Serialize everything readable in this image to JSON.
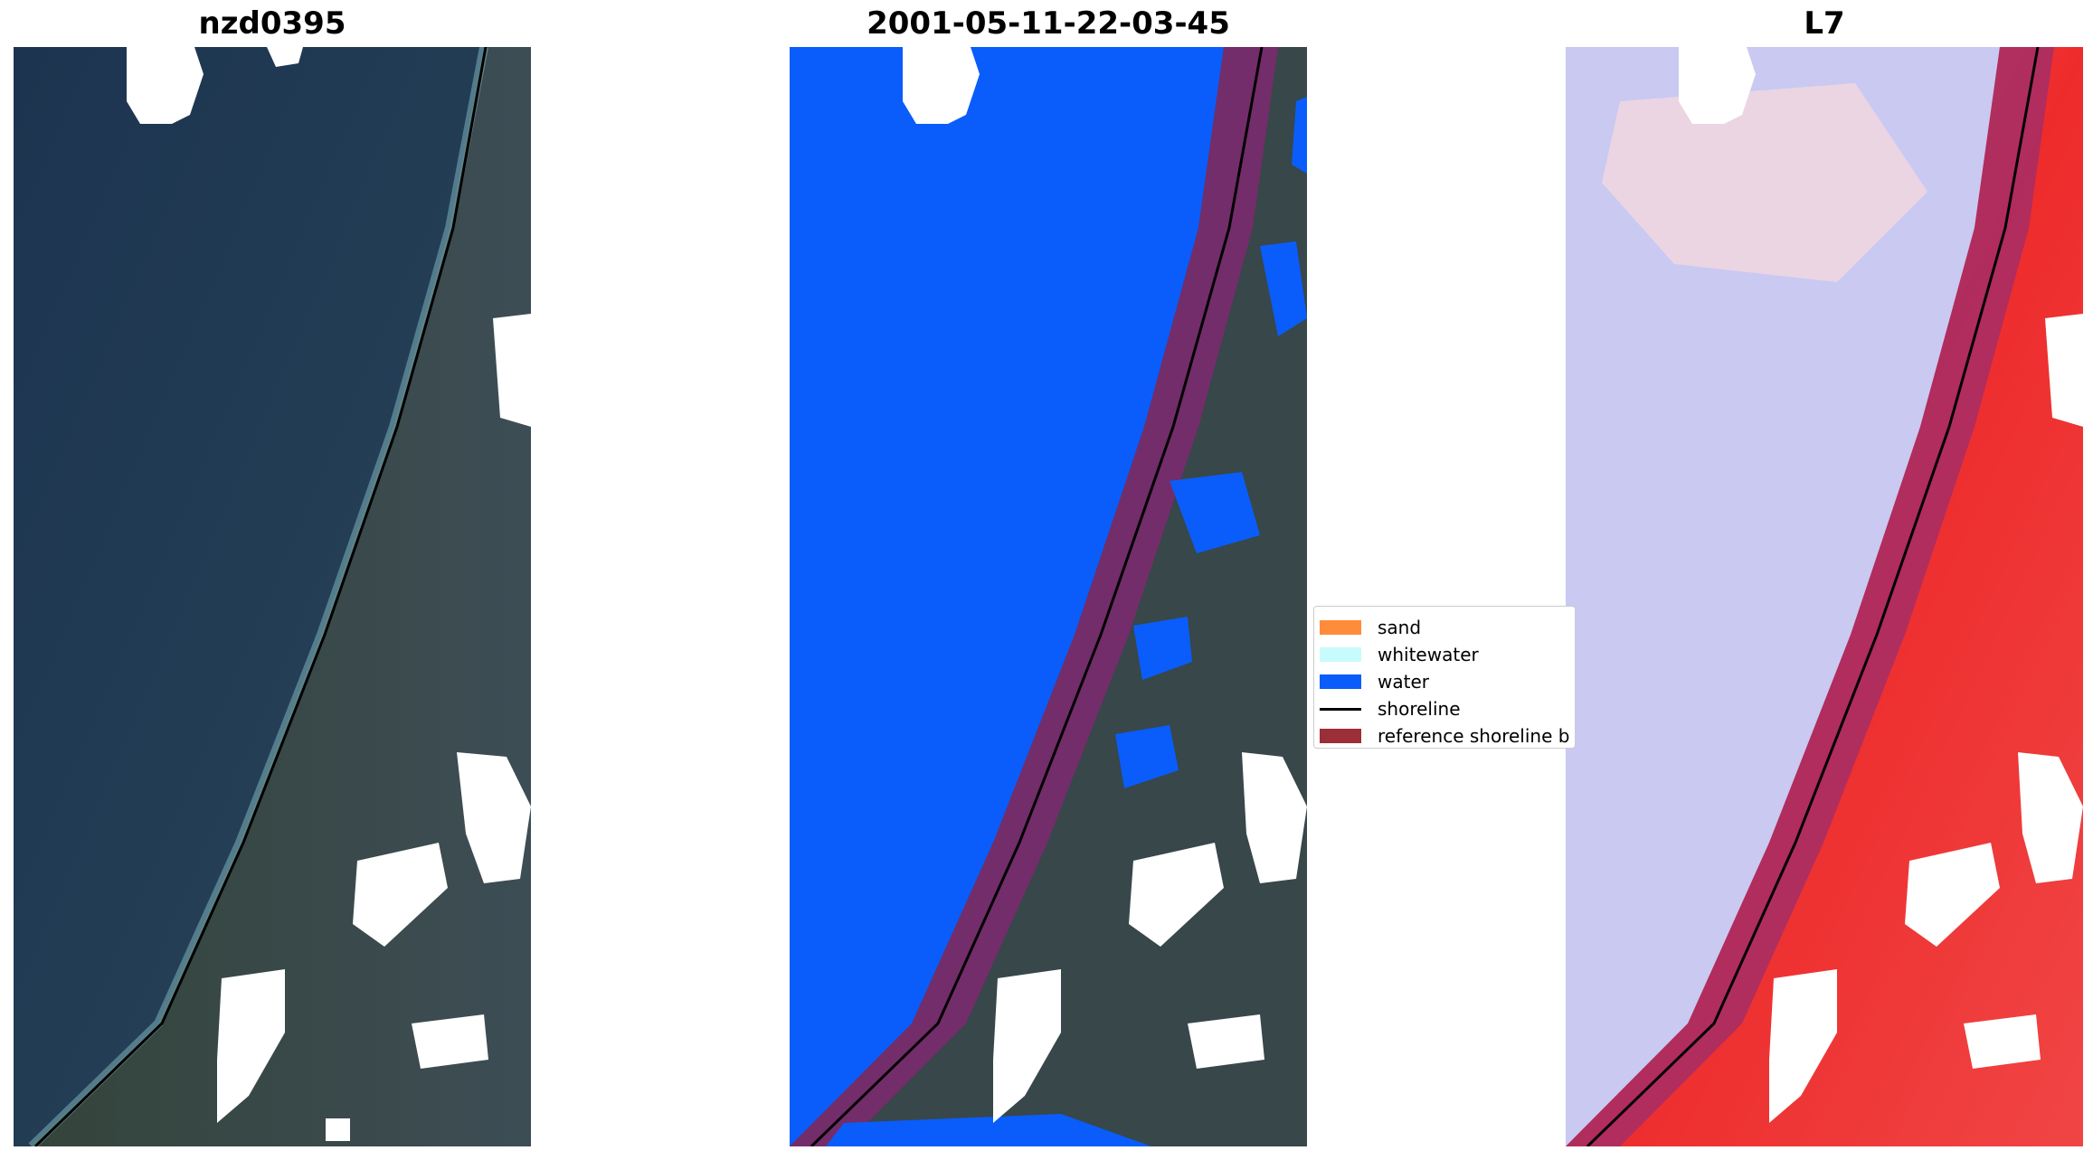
{
  "panels": [
    {
      "title": "nzd0395",
      "type": "rgb"
    },
    {
      "title": "2001-05-11-22-03-45",
      "type": "classified"
    },
    {
      "title": "L7",
      "type": "index"
    }
  ],
  "legend": {
    "items": [
      {
        "label": "sand",
        "color": "#ff8c3a",
        "kind": "patch"
      },
      {
        "label": "whitewater",
        "color": "#c8fbfd",
        "kind": "patch"
      },
      {
        "label": "water",
        "color": "#0a5dfa",
        "kind": "patch"
      },
      {
        "label": "shoreline",
        "color": "#000000",
        "kind": "line"
      },
      {
        "label": "reference shoreline b",
        "color": "#9b2e36",
        "kind": "patch"
      }
    ]
  },
  "colors": {
    "land_dark": "#2e3f38",
    "sea_dark": "#203952",
    "water_class": "#0a5dfa",
    "buffer": "#7a2a6e",
    "index_water": "#c9c9f2",
    "index_land": "#ee2b2b",
    "cloud_mask": "#ffffff"
  }
}
